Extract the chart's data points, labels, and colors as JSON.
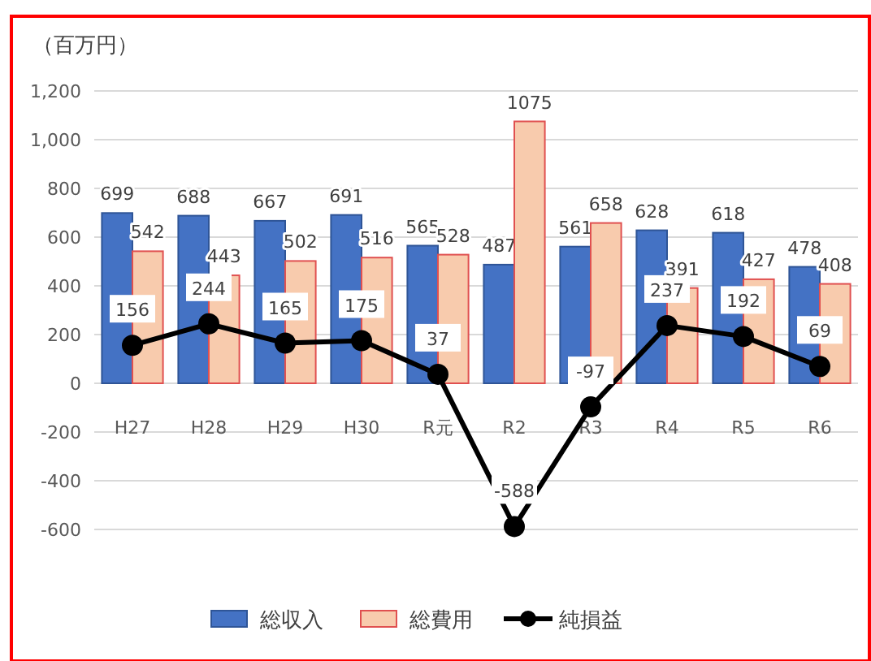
{
  "chart_data": {
    "type": "bar",
    "ylabel": "（百万円）",
    "categories": [
      "H27",
      "H28",
      "H29",
      "H30",
      "R元",
      "R2",
      "R3",
      "R4",
      "R5",
      "R6"
    ],
    "series": [
      {
        "name": "総収入",
        "color": "#4472c4",
        "values": [
          699,
          688,
          667,
          691,
          565,
          487,
          561,
          628,
          618,
          478
        ]
      },
      {
        "name": "総費用",
        "color": "#f8cbad",
        "values": [
          542,
          443,
          502,
          516,
          528,
          1075,
          658,
          391,
          427,
          408
        ]
      },
      {
        "name": "純損益",
        "type": "line",
        "color": "#000000",
        "marker": "circle",
        "values": [
          156,
          244,
          165,
          175,
          37,
          -588,
          -97,
          237,
          192,
          69
        ]
      }
    ],
    "ylim": [
      -600,
      1200
    ],
    "yticks": [
      -600,
      -400,
      -200,
      0,
      200,
      400,
      600,
      800,
      {
        "value": 1000,
        "label": "1,000"
      },
      {
        "value": 1200,
        "label": "1,200"
      }
    ],
    "grid": "y",
    "legend": "bottom",
    "data_labels": true
  }
}
